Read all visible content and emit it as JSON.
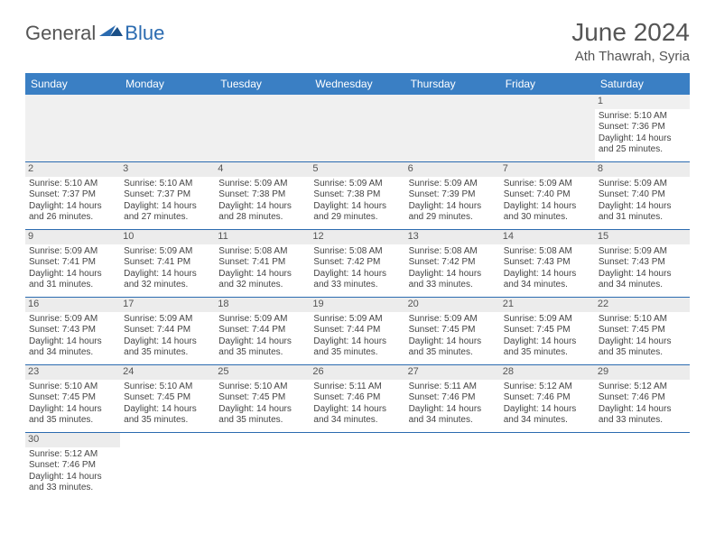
{
  "brand": {
    "part1": "General",
    "part2": "Blue"
  },
  "title": "June 2024",
  "location": "Ath Thawrah, Syria",
  "day_headers": [
    "Sunday",
    "Monday",
    "Tuesday",
    "Wednesday",
    "Thursday",
    "Friday",
    "Saturday"
  ],
  "colors": {
    "header_bg": "#3a7fc4",
    "header_text": "#ffffff",
    "row_divider": "#2b6bb0",
    "daynum_bg": "#ececec",
    "text": "#444444",
    "title_text": "#555555",
    "logo_blue": "#2b6bb0"
  },
  "weeks": [
    [
      null,
      null,
      null,
      null,
      null,
      null,
      {
        "n": "1",
        "sr": "Sunrise: 5:10 AM",
        "ss": "Sunset: 7:36 PM",
        "d1": "Daylight: 14 hours",
        "d2": "and 25 minutes."
      }
    ],
    [
      {
        "n": "2",
        "sr": "Sunrise: 5:10 AM",
        "ss": "Sunset: 7:37 PM",
        "d1": "Daylight: 14 hours",
        "d2": "and 26 minutes."
      },
      {
        "n": "3",
        "sr": "Sunrise: 5:10 AM",
        "ss": "Sunset: 7:37 PM",
        "d1": "Daylight: 14 hours",
        "d2": "and 27 minutes."
      },
      {
        "n": "4",
        "sr": "Sunrise: 5:09 AM",
        "ss": "Sunset: 7:38 PM",
        "d1": "Daylight: 14 hours",
        "d2": "and 28 minutes."
      },
      {
        "n": "5",
        "sr": "Sunrise: 5:09 AM",
        "ss": "Sunset: 7:38 PM",
        "d1": "Daylight: 14 hours",
        "d2": "and 29 minutes."
      },
      {
        "n": "6",
        "sr": "Sunrise: 5:09 AM",
        "ss": "Sunset: 7:39 PM",
        "d1": "Daylight: 14 hours",
        "d2": "and 29 minutes."
      },
      {
        "n": "7",
        "sr": "Sunrise: 5:09 AM",
        "ss": "Sunset: 7:40 PM",
        "d1": "Daylight: 14 hours",
        "d2": "and 30 minutes."
      },
      {
        "n": "8",
        "sr": "Sunrise: 5:09 AM",
        "ss": "Sunset: 7:40 PM",
        "d1": "Daylight: 14 hours",
        "d2": "and 31 minutes."
      }
    ],
    [
      {
        "n": "9",
        "sr": "Sunrise: 5:09 AM",
        "ss": "Sunset: 7:41 PM",
        "d1": "Daylight: 14 hours",
        "d2": "and 31 minutes."
      },
      {
        "n": "10",
        "sr": "Sunrise: 5:09 AM",
        "ss": "Sunset: 7:41 PM",
        "d1": "Daylight: 14 hours",
        "d2": "and 32 minutes."
      },
      {
        "n": "11",
        "sr": "Sunrise: 5:08 AM",
        "ss": "Sunset: 7:41 PM",
        "d1": "Daylight: 14 hours",
        "d2": "and 32 minutes."
      },
      {
        "n": "12",
        "sr": "Sunrise: 5:08 AM",
        "ss": "Sunset: 7:42 PM",
        "d1": "Daylight: 14 hours",
        "d2": "and 33 minutes."
      },
      {
        "n": "13",
        "sr": "Sunrise: 5:08 AM",
        "ss": "Sunset: 7:42 PM",
        "d1": "Daylight: 14 hours",
        "d2": "and 33 minutes."
      },
      {
        "n": "14",
        "sr": "Sunrise: 5:08 AM",
        "ss": "Sunset: 7:43 PM",
        "d1": "Daylight: 14 hours",
        "d2": "and 34 minutes."
      },
      {
        "n": "15",
        "sr": "Sunrise: 5:09 AM",
        "ss": "Sunset: 7:43 PM",
        "d1": "Daylight: 14 hours",
        "d2": "and 34 minutes."
      }
    ],
    [
      {
        "n": "16",
        "sr": "Sunrise: 5:09 AM",
        "ss": "Sunset: 7:43 PM",
        "d1": "Daylight: 14 hours",
        "d2": "and 34 minutes."
      },
      {
        "n": "17",
        "sr": "Sunrise: 5:09 AM",
        "ss": "Sunset: 7:44 PM",
        "d1": "Daylight: 14 hours",
        "d2": "and 35 minutes."
      },
      {
        "n": "18",
        "sr": "Sunrise: 5:09 AM",
        "ss": "Sunset: 7:44 PM",
        "d1": "Daylight: 14 hours",
        "d2": "and 35 minutes."
      },
      {
        "n": "19",
        "sr": "Sunrise: 5:09 AM",
        "ss": "Sunset: 7:44 PM",
        "d1": "Daylight: 14 hours",
        "d2": "and 35 minutes."
      },
      {
        "n": "20",
        "sr": "Sunrise: 5:09 AM",
        "ss": "Sunset: 7:45 PM",
        "d1": "Daylight: 14 hours",
        "d2": "and 35 minutes."
      },
      {
        "n": "21",
        "sr": "Sunrise: 5:09 AM",
        "ss": "Sunset: 7:45 PM",
        "d1": "Daylight: 14 hours",
        "d2": "and 35 minutes."
      },
      {
        "n": "22",
        "sr": "Sunrise: 5:10 AM",
        "ss": "Sunset: 7:45 PM",
        "d1": "Daylight: 14 hours",
        "d2": "and 35 minutes."
      }
    ],
    [
      {
        "n": "23",
        "sr": "Sunrise: 5:10 AM",
        "ss": "Sunset: 7:45 PM",
        "d1": "Daylight: 14 hours",
        "d2": "and 35 minutes."
      },
      {
        "n": "24",
        "sr": "Sunrise: 5:10 AM",
        "ss": "Sunset: 7:45 PM",
        "d1": "Daylight: 14 hours",
        "d2": "and 35 minutes."
      },
      {
        "n": "25",
        "sr": "Sunrise: 5:10 AM",
        "ss": "Sunset: 7:45 PM",
        "d1": "Daylight: 14 hours",
        "d2": "and 35 minutes."
      },
      {
        "n": "26",
        "sr": "Sunrise: 5:11 AM",
        "ss": "Sunset: 7:46 PM",
        "d1": "Daylight: 14 hours",
        "d2": "and 34 minutes."
      },
      {
        "n": "27",
        "sr": "Sunrise: 5:11 AM",
        "ss": "Sunset: 7:46 PM",
        "d1": "Daylight: 14 hours",
        "d2": "and 34 minutes."
      },
      {
        "n": "28",
        "sr": "Sunrise: 5:12 AM",
        "ss": "Sunset: 7:46 PM",
        "d1": "Daylight: 14 hours",
        "d2": "and 34 minutes."
      },
      {
        "n": "29",
        "sr": "Sunrise: 5:12 AM",
        "ss": "Sunset: 7:46 PM",
        "d1": "Daylight: 14 hours",
        "d2": "and 33 minutes."
      }
    ],
    [
      {
        "n": "30",
        "sr": "Sunrise: 5:12 AM",
        "ss": "Sunset: 7:46 PM",
        "d1": "Daylight: 14 hours",
        "d2": "and 33 minutes."
      },
      null,
      null,
      null,
      null,
      null,
      null
    ]
  ]
}
